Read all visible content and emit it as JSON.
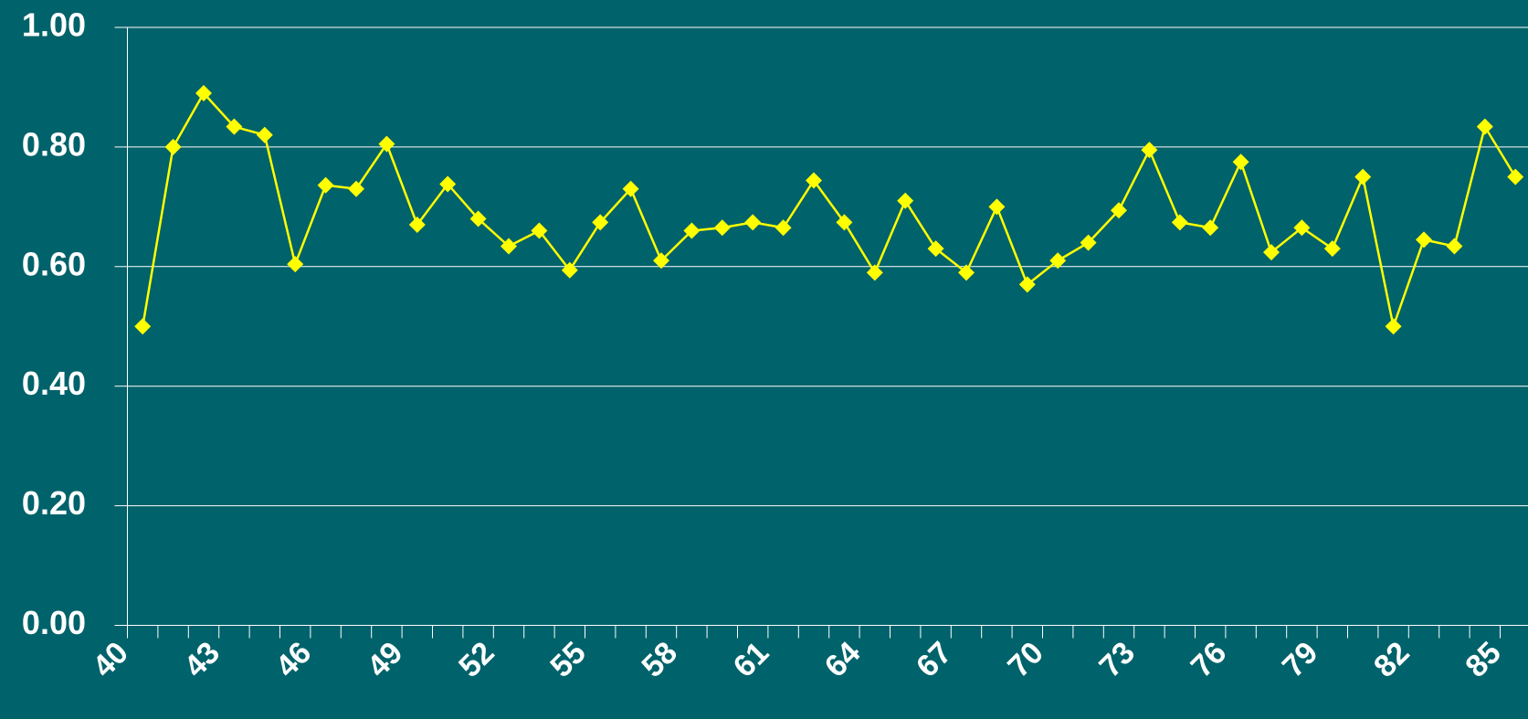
{
  "chart_data": {
    "type": "line",
    "categories": [
      "40",
      null,
      null,
      "43",
      null,
      null,
      "46",
      null,
      null,
      "49",
      null,
      null,
      "52",
      null,
      null,
      "55",
      null,
      null,
      "58",
      null,
      null,
      "61",
      null,
      null,
      "64",
      null,
      null,
      "67",
      null,
      null,
      "70",
      null,
      null,
      "73",
      null,
      null,
      "76",
      null,
      null,
      "79",
      null,
      null,
      "82",
      null,
      null,
      "85"
    ],
    "values": [
      0.5,
      0.8,
      0.89,
      0.834,
      0.82,
      0.604,
      0.736,
      0.73,
      0.805,
      0.67,
      0.738,
      0.68,
      0.634,
      0.66,
      0.594,
      0.674,
      0.73,
      0.61,
      0.66,
      0.665,
      0.674,
      0.665,
      0.744,
      0.674,
      0.59,
      0.71,
      0.63,
      0.59,
      0.7,
      0.57,
      0.61,
      0.64,
      0.694,
      0.795,
      0.674,
      0.665,
      0.775,
      0.624,
      0.665,
      0.63,
      0.75,
      0.5,
      0.645,
      0.634,
      0.834,
      0.75
    ],
    "color": "#ffff00",
    "ylim": [
      0,
      1
    ],
    "yticks": [
      {
        "value": 0,
        "label": "0.00"
      },
      {
        "value": 0.2,
        "label": "0.20"
      },
      {
        "value": 0.4,
        "label": "0.40"
      },
      {
        "value": 0.6,
        "label": "0.60"
      },
      {
        "value": 0.8,
        "label": "0.80"
      },
      {
        "value": 1,
        "label": "1.00"
      }
    ],
    "grid": true
  }
}
